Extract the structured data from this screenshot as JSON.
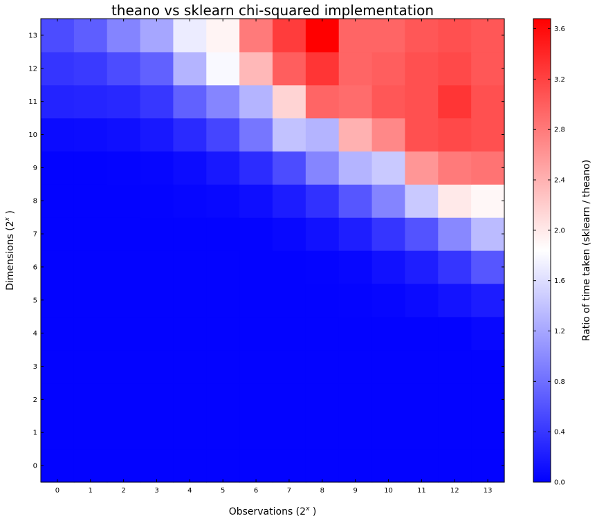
{
  "chart_data": {
    "type": "heatmap",
    "title": "theano vs sklearn chi-squared implementation",
    "xlabel": "Observations",
    "xlabel_exponent": "x",
    "ylabel": "Dimensions",
    "ylabel_exponent": "x",
    "colorbar_label": "Ratio of time taken (sklearn / theano)",
    "x_ticks": [
      "0",
      "1",
      "2",
      "3",
      "4",
      "5",
      "6",
      "7",
      "8",
      "9",
      "10",
      "11",
      "12",
      "13"
    ],
    "y_ticks": [
      "0",
      "1",
      "2",
      "3",
      "4",
      "5",
      "6",
      "7",
      "8",
      "9",
      "10",
      "11",
      "12",
      "13"
    ],
    "colorbar_ticks": [
      "0.0",
      "0.4",
      "0.8",
      "1.2",
      "1.6",
      "2.0",
      "2.4",
      "2.8",
      "3.2",
      "3.6"
    ],
    "colorbar_tick_values": [
      0.0,
      0.4,
      0.8,
      1.2,
      1.6,
      2.0,
      2.4,
      2.8,
      3.2,
      3.6
    ],
    "vmin": 0.0,
    "vmax": 3.68,
    "vcenter": 1.84,
    "colormap": "bwr",
    "colors": {
      "low": "#0000ff",
      "mid": "#ffffff",
      "high": "#ff0000"
    },
    "values": [
      [
        0.02,
        0.02,
        0.02,
        0.02,
        0.02,
        0.02,
        0.02,
        0.02,
        0.02,
        0.02,
        0.02,
        0.02,
        0.02,
        0.02
      ],
      [
        0.02,
        0.02,
        0.02,
        0.02,
        0.02,
        0.02,
        0.02,
        0.02,
        0.02,
        0.02,
        0.02,
        0.02,
        0.02,
        0.02
      ],
      [
        0.02,
        0.02,
        0.02,
        0.02,
        0.02,
        0.02,
        0.02,
        0.02,
        0.02,
        0.02,
        0.02,
        0.02,
        0.02,
        0.02
      ],
      [
        0.02,
        0.02,
        0.02,
        0.02,
        0.02,
        0.02,
        0.02,
        0.02,
        0.02,
        0.02,
        0.02,
        0.02,
        0.02,
        0.02
      ],
      [
        0.02,
        0.02,
        0.02,
        0.02,
        0.02,
        0.02,
        0.02,
        0.02,
        0.02,
        0.02,
        0.02,
        0.02,
        0.02,
        0.06
      ],
      [
        0.02,
        0.02,
        0.02,
        0.02,
        0.02,
        0.02,
        0.02,
        0.02,
        0.02,
        0.03,
        0.04,
        0.08,
        0.14,
        0.2
      ],
      [
        0.02,
        0.02,
        0.02,
        0.02,
        0.02,
        0.02,
        0.02,
        0.02,
        0.03,
        0.05,
        0.12,
        0.22,
        0.38,
        0.62
      ],
      [
        0.02,
        0.02,
        0.02,
        0.02,
        0.02,
        0.02,
        0.03,
        0.06,
        0.12,
        0.22,
        0.38,
        0.6,
        0.98,
        1.35
      ],
      [
        0.02,
        0.02,
        0.02,
        0.03,
        0.04,
        0.06,
        0.1,
        0.2,
        0.35,
        0.62,
        0.95,
        1.45,
        2.0,
        1.9
      ],
      [
        0.02,
        0.02,
        0.03,
        0.04,
        0.09,
        0.17,
        0.32,
        0.55,
        0.96,
        1.3,
        1.45,
        2.6,
        2.8,
        2.85
      ],
      [
        0.08,
        0.09,
        0.11,
        0.17,
        0.3,
        0.5,
        0.85,
        1.4,
        1.3,
        2.4,
        2.7,
        3.1,
        3.15,
        3.1
      ],
      [
        0.25,
        0.27,
        0.29,
        0.4,
        0.7,
        0.96,
        1.3,
        2.15,
        2.95,
        2.9,
        3.05,
        3.1,
        3.3,
        3.1
      ],
      [
        0.38,
        0.42,
        0.55,
        0.7,
        1.3,
        1.8,
        2.35,
        3.0,
        3.3,
        2.95,
        3.0,
        3.1,
        3.15,
        3.05
      ],
      [
        0.55,
        0.68,
        0.95,
        1.2,
        1.7,
        1.92,
        2.8,
        3.25,
        3.68,
        2.95,
        2.95,
        3.05,
        3.1,
        3.05
      ]
    ]
  }
}
